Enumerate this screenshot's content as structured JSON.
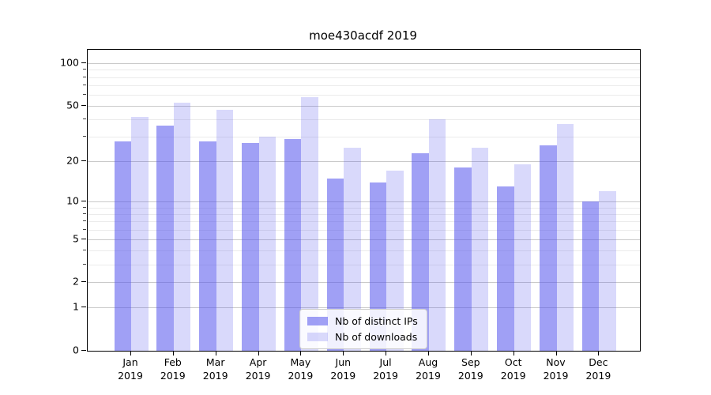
{
  "title": "moe430acdf 2019",
  "chart_data": {
    "type": "bar",
    "title": "moe430acdf 2019",
    "categories": [
      "Jan",
      "Feb",
      "Mar",
      "Apr",
      "May",
      "Jun",
      "Jul",
      "Aug",
      "Sep",
      "Oct",
      "Nov",
      "Dec"
    ],
    "x_year_label": "2019",
    "series": [
      {
        "name": "Nb of distinct IPs",
        "color": "rgba(82,82,236,0.55)",
        "solid_color": "#a2a2f0",
        "values": [
          28,
          36,
          28,
          27,
          29,
          15,
          14,
          23,
          18,
          13,
          26,
          10
        ]
      },
      {
        "name": "Nb of downloads",
        "color": "rgba(82,82,236,0.22)",
        "solid_color": "#d9d9f7",
        "values": [
          42,
          53,
          47,
          30,
          58,
          25,
          17,
          40,
          25,
          19,
          37,
          12
        ]
      }
    ],
    "y_axis": {
      "scale": "log1p",
      "major_ticks": [
        0,
        1,
        2,
        5,
        10,
        20,
        50,
        100
      ],
      "minor_ticks": [
        3,
        4,
        6,
        7,
        8,
        9,
        30,
        40,
        60,
        70,
        80,
        90
      ],
      "ylim": [
        0,
        125
      ]
    },
    "xlabel": "",
    "ylabel": "",
    "grid": true,
    "legend": {
      "position": "lower center",
      "entries": [
        "Nb of distinct IPs",
        "Nb of downloads"
      ]
    }
  },
  "colors": {
    "grid_major": "#c9c9c9",
    "grid_minor": "#ebebeb",
    "axis": "#000000",
    "background": "#ffffff",
    "legend_border": "#cccccc"
  }
}
